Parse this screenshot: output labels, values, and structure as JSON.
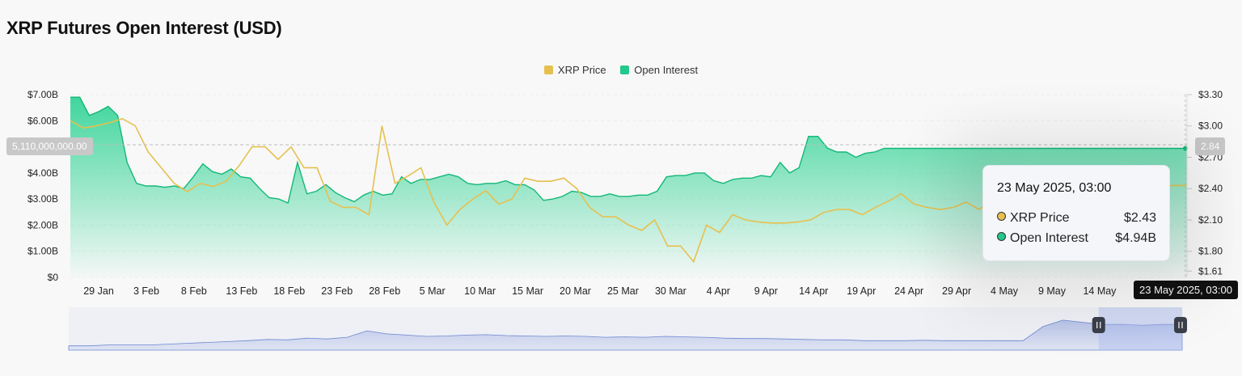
{
  "title": "XRP Futures Open Interest (USD)",
  "legend": [
    {
      "label": "XRP Price",
      "color": "#e6c04f"
    },
    {
      "label": "Open Interest",
      "color": "#22c98a"
    }
  ],
  "crosshair": {
    "left_value": "5,110,000,000.00",
    "right_value": "2.84",
    "date": "23 May 2025, 03:00"
  },
  "tooltip": {
    "date": "23 May 2025, 03:00",
    "rows": [
      {
        "label": "XRP Price",
        "value": "$2.43",
        "color": "#e6c04f"
      },
      {
        "label": "Open Interest",
        "value": "$4.94B",
        "color": "#22c98a"
      }
    ]
  },
  "chart_data": {
    "type": "area",
    "title": "XRP Futures Open Interest (USD)",
    "x_ticks": [
      "29 Jan",
      "3 Feb",
      "8 Feb",
      "13 Feb",
      "18 Feb",
      "23 Feb",
      "28 Feb",
      "5 Mar",
      "10 Mar",
      "15 Mar",
      "20 Mar",
      "25 Mar",
      "30 Mar",
      "4 Apr",
      "9 Apr",
      "14 Apr",
      "19 Apr",
      "24 Apr",
      "29 Apr",
      "4 May",
      "9 May",
      "14 May"
    ],
    "y_left": {
      "ticks": [
        "$0",
        "$1.00B",
        "$2.00B",
        "$3.00B",
        "$4.00B",
        "$6.00B",
        "$7.00B"
      ],
      "range": [
        0,
        7.0
      ],
      "unit": "B USD"
    },
    "y_right": {
      "ticks": [
        "$1.61",
        "$1.80",
        "$2.10",
        "$2.40",
        "$2.70",
        "$3.00",
        "$3.30"
      ],
      "range": [
        1.55,
        3.3
      ],
      "unit": "USD"
    },
    "grid": true,
    "legend_position": "top-center",
    "series": [
      {
        "name": "Open Interest",
        "axis": "left",
        "color": "#22c98a",
        "x": [
          0,
          1,
          2,
          3,
          4,
          5,
          6,
          7,
          8,
          9,
          10,
          11,
          12,
          13,
          14,
          15,
          16,
          17,
          18,
          19,
          20,
          21,
          22,
          23,
          24,
          25,
          26,
          27,
          28,
          29,
          30,
          31,
          32,
          33,
          34,
          35,
          36,
          37,
          38,
          39,
          40,
          41,
          42,
          43,
          44,
          45,
          46,
          47,
          48,
          49,
          50,
          51,
          52,
          53,
          54,
          55,
          56,
          57,
          58,
          59,
          60,
          61,
          62,
          63,
          64,
          65,
          66,
          67,
          68,
          69,
          70,
          71,
          72,
          73,
          74,
          75,
          76,
          77,
          78,
          79,
          80,
          81,
          82,
          83,
          84,
          85,
          86,
          87,
          88,
          89,
          90,
          91,
          92,
          93,
          94,
          95,
          96,
          97,
          98,
          99,
          100,
          101,
          102,
          103,
          104,
          105,
          106,
          107,
          108,
          109,
          110,
          111,
          112,
          113,
          114,
          115,
          116,
          117,
          118
        ],
        "values": [
          6.9,
          6.9,
          6.2,
          6.35,
          6.55,
          6.2,
          4.4,
          3.6,
          3.5,
          3.5,
          3.45,
          3.5,
          3.4,
          3.85,
          4.35,
          4.05,
          3.95,
          4.15,
          3.85,
          3.8,
          3.4,
          3.05,
          3.0,
          2.85,
          4.4,
          3.2,
          3.3,
          3.55,
          3.25,
          3.05,
          2.9,
          3.15,
          3.3,
          3.15,
          3.2,
          3.85,
          3.6,
          3.75,
          3.75,
          3.85,
          3.95,
          3.85,
          3.6,
          3.55,
          3.6,
          3.6,
          3.7,
          3.55,
          3.55,
          3.35,
          2.95,
          3.0,
          3.1,
          3.3,
          3.25,
          3.1,
          3.1,
          3.2,
          3.1,
          3.1,
          3.15,
          3.15,
          3.3,
          3.85,
          3.9,
          3.9,
          4.0,
          4.0,
          3.7,
          3.6,
          3.75,
          3.8,
          3.8,
          3.9,
          3.85,
          4.4,
          4.0,
          4.2,
          5.4,
          5.4,
          4.95,
          4.8,
          4.8,
          4.6,
          4.75,
          4.8,
          4.94,
          4.94,
          4.94,
          4.94,
          4.94,
          4.94,
          4.94,
          4.94,
          4.94,
          4.94,
          4.94,
          4.94,
          4.94,
          4.94,
          4.94,
          4.94,
          4.94,
          4.94,
          4.94,
          4.94,
          4.94,
          4.94,
          4.94,
          4.94,
          4.94,
          4.94,
          4.94,
          4.94,
          4.94,
          4.94,
          4.94,
          4.94,
          4.94
        ]
      },
      {
        "name": "XRP Price",
        "axis": "right",
        "color": "#e6c04f",
        "x": [
          0,
          1,
          2,
          3,
          4,
          5,
          6,
          7,
          8,
          9,
          10,
          11,
          12,
          13,
          14,
          15,
          16,
          17,
          18,
          19,
          20,
          21,
          22,
          23,
          24,
          25,
          26,
          27,
          28,
          29,
          30,
          31,
          32,
          33,
          34,
          35,
          36,
          37,
          38,
          39,
          40,
          41,
          42,
          43,
          44,
          45,
          46,
          47,
          48,
          49,
          50,
          51,
          52,
          53,
          54,
          55,
          56,
          57,
          58,
          59,
          60,
          61,
          62,
          63,
          64,
          65,
          66,
          67,
          68,
          69,
          70,
          71,
          72,
          73,
          74,
          75,
          76,
          77,
          78,
          79,
          80,
          81,
          82,
          83,
          84,
          85,
          86
        ],
        "values": [
          3.05,
          2.98,
          3.0,
          3.03,
          3.07,
          3.0,
          2.75,
          2.6,
          2.45,
          2.37,
          2.45,
          2.42,
          2.47,
          2.62,
          2.8,
          2.8,
          2.68,
          2.8,
          2.6,
          2.6,
          2.28,
          2.22,
          2.22,
          2.15,
          3.0,
          2.45,
          2.52,
          2.6,
          2.27,
          2.05,
          2.2,
          2.3,
          2.38,
          2.25,
          2.3,
          2.5,
          2.47,
          2.47,
          2.5,
          2.4,
          2.22,
          2.13,
          2.13,
          2.05,
          2.0,
          2.1,
          1.85,
          1.85,
          1.7,
          2.05,
          1.98,
          2.15,
          2.1,
          2.08,
          2.07,
          2.07,
          2.08,
          2.1,
          2.17,
          2.2,
          2.2,
          2.15,
          2.22,
          2.28,
          2.35,
          2.25,
          2.22,
          2.2,
          2.22,
          2.27,
          2.2,
          2.3,
          2.35,
          2.35,
          2.35,
          2.35,
          2.35,
          2.38,
          2.4,
          2.4,
          2.38,
          2.42,
          2.43,
          2.42,
          2.43,
          2.43,
          2.43
        ]
      }
    ],
    "overview": {
      "values": [
        0.1,
        0.1,
        0.12,
        0.12,
        0.12,
        0.14,
        0.16,
        0.18,
        0.2,
        0.22,
        0.25,
        0.24,
        0.28,
        0.26,
        0.3,
        0.45,
        0.38,
        0.35,
        0.32,
        0.33,
        0.35,
        0.36,
        0.34,
        0.33,
        0.32,
        0.33,
        0.32,
        0.3,
        0.31,
        0.3,
        0.32,
        0.31,
        0.3,
        0.28,
        0.27,
        0.27,
        0.26,
        0.25,
        0.24,
        0.24,
        0.22,
        0.22,
        0.22,
        0.23,
        0.22,
        0.22,
        0.22,
        0.22,
        0.22,
        0.55,
        0.7,
        0.65,
        0.6,
        0.6,
        0.58,
        0.6,
        0.6
      ],
      "selection": [
        0.925,
        1.0
      ]
    }
  }
}
